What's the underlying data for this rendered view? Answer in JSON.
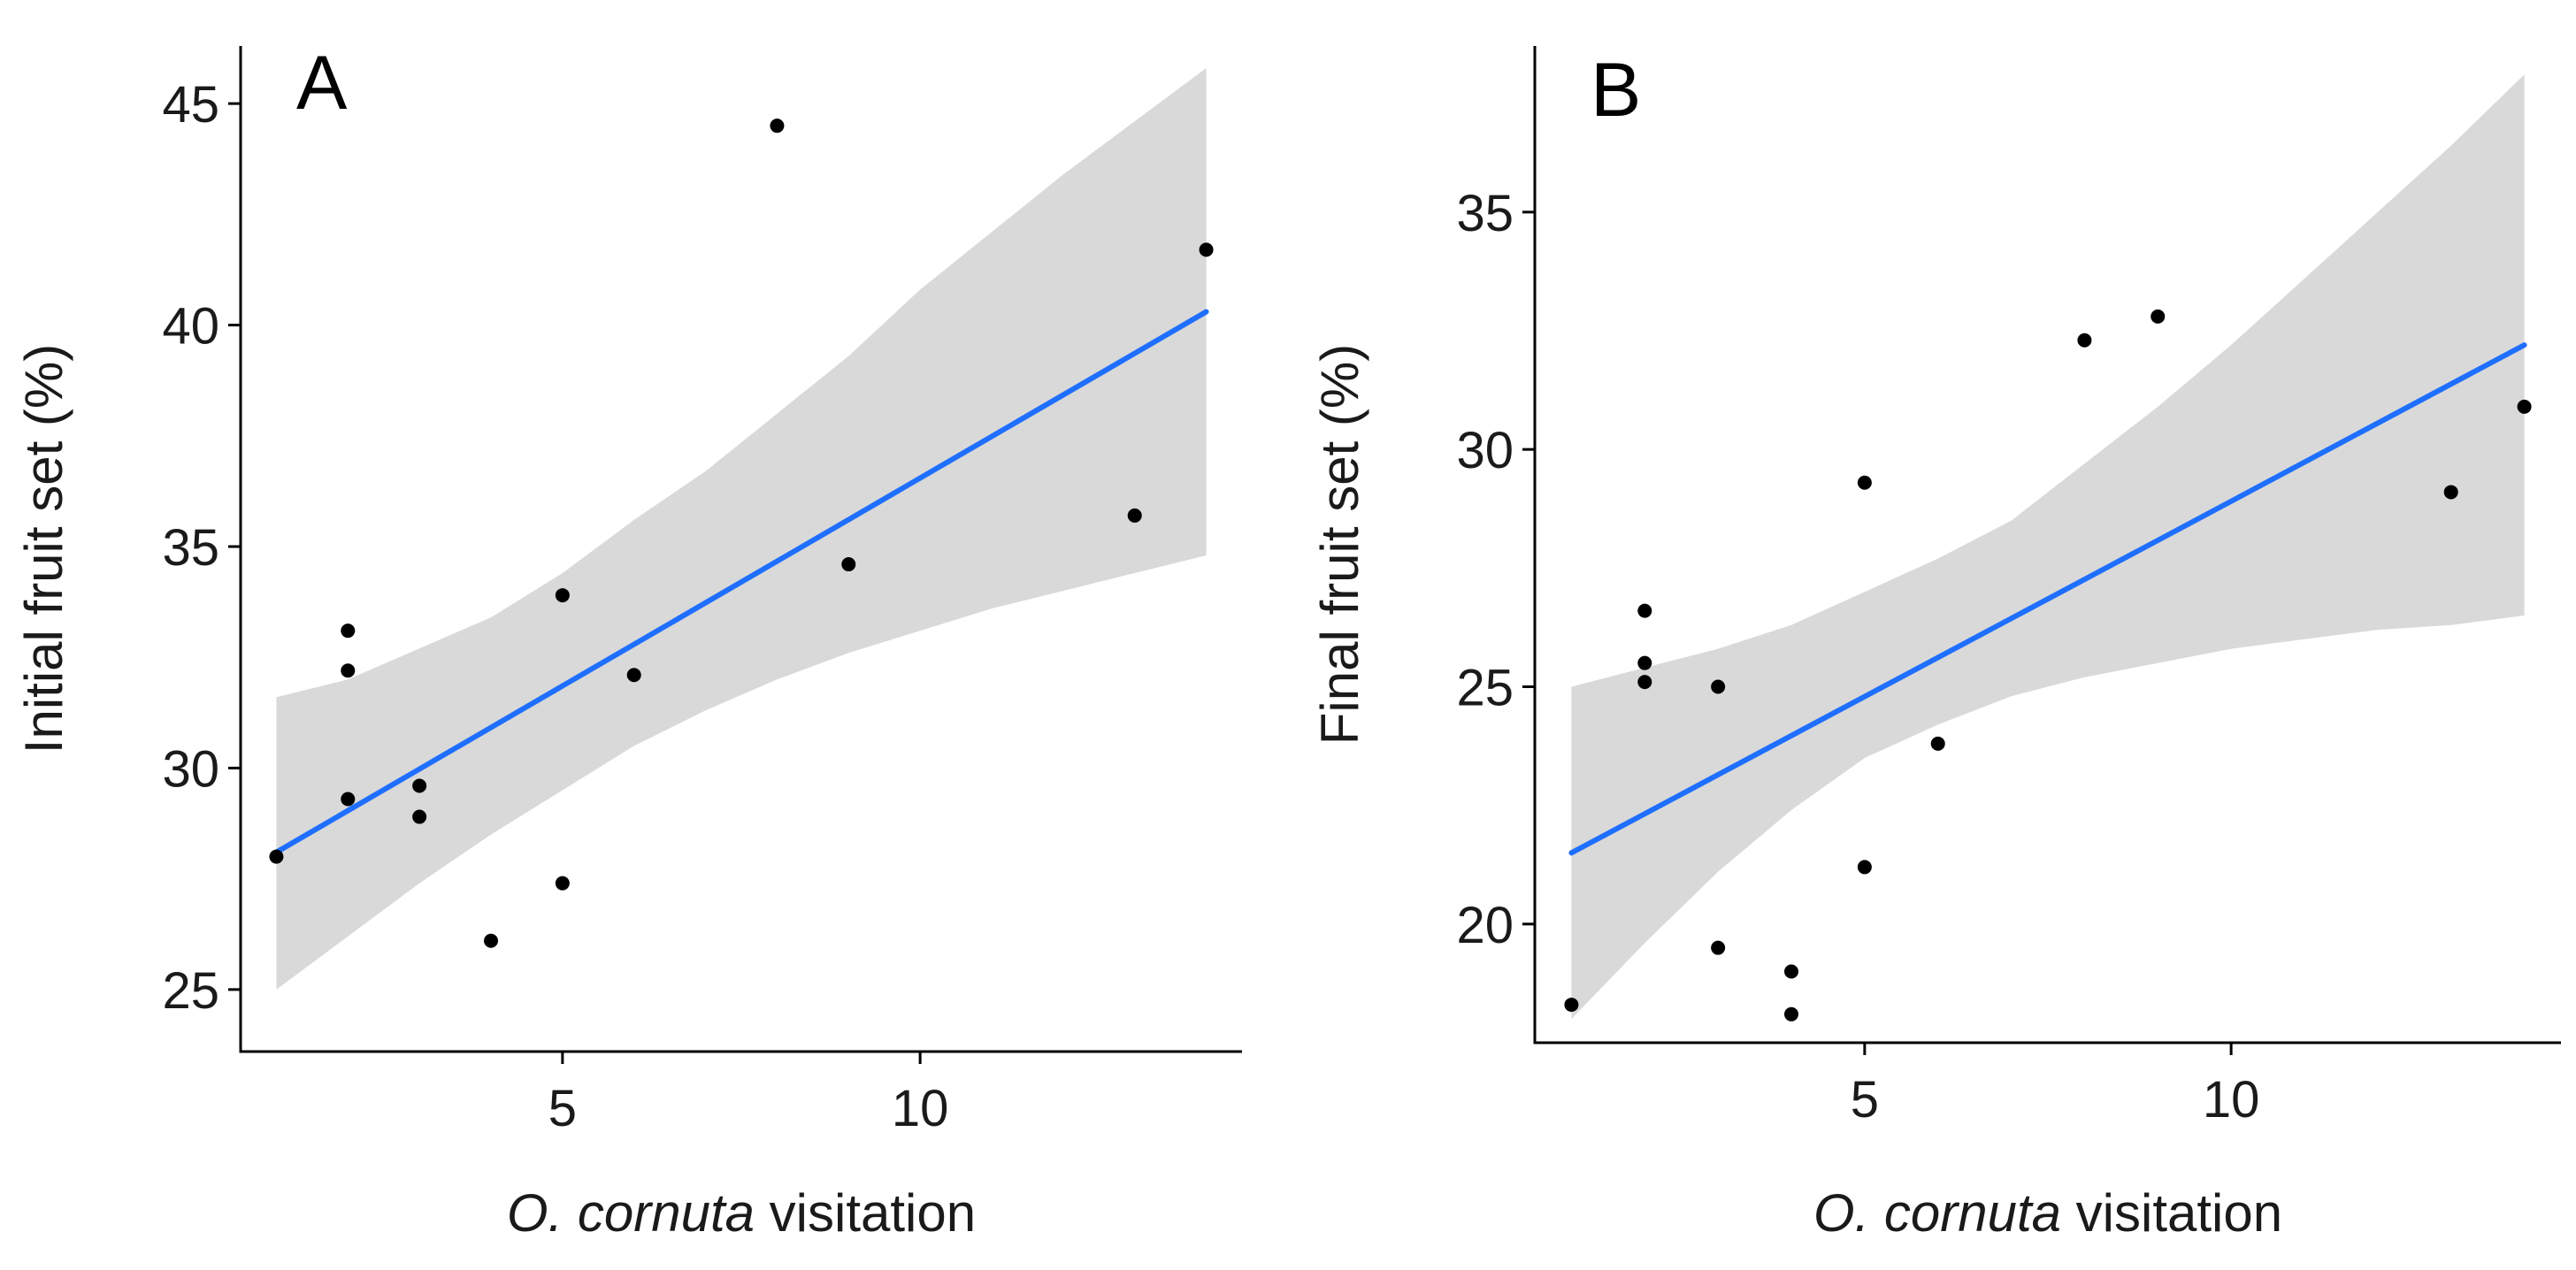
{
  "colors": {
    "band": "#d9d9d9",
    "line": "#1f6fff",
    "points": "#000000",
    "axes": "#000000"
  },
  "chart_data": [
    {
      "type": "scatter",
      "panel_label": "A",
      "title": "",
      "xlabel_italic": "O. cornuta",
      "xlabel_rest": " visitation",
      "ylabel": "Initial fruit set (%)",
      "xlim": [
        0.5,
        14.5
      ],
      "ylim": [
        23.6,
        46.3
      ],
      "xticks": [
        5,
        10
      ],
      "xtick_labels": [
        "5",
        "10"
      ],
      "yticks": [
        25,
        30,
        35,
        40,
        45
      ],
      "ytick_labels": [
        "25",
        "30",
        "35",
        "40",
        "45"
      ],
      "points": [
        {
          "x": 1,
          "y": 28.0
        },
        {
          "x": 2,
          "y": 33.1
        },
        {
          "x": 2,
          "y": 32.2
        },
        {
          "x": 2,
          "y": 29.3
        },
        {
          "x": 3,
          "y": 29.6
        },
        {
          "x": 3,
          "y": 28.9
        },
        {
          "x": 4,
          "y": 26.1
        },
        {
          "x": 5,
          "y": 33.9
        },
        {
          "x": 5,
          "y": 27.4
        },
        {
          "x": 6,
          "y": 32.1
        },
        {
          "x": 8,
          "y": 44.5
        },
        {
          "x": 9,
          "y": 34.6
        },
        {
          "x": 13,
          "y": 35.7
        },
        {
          "x": 14,
          "y": 41.7
        }
      ],
      "fit": {
        "x": [
          1,
          14
        ],
        "y": [
          28.1,
          40.3
        ]
      },
      "ci_band": {
        "x": [
          1,
          2,
          3,
          4,
          5,
          6,
          7,
          8,
          9,
          10,
          11,
          12,
          13,
          14
        ],
        "lower": [
          25.0,
          26.2,
          27.4,
          28.5,
          29.5,
          30.5,
          31.3,
          32.0,
          32.6,
          33.1,
          33.6,
          34.0,
          34.4,
          34.8
        ],
        "upper": [
          31.6,
          32.0,
          32.7,
          33.4,
          34.4,
          35.6,
          36.7,
          38.0,
          39.3,
          40.8,
          42.1,
          43.4,
          44.6,
          45.8
        ]
      }
    },
    {
      "type": "scatter",
      "panel_label": "B",
      "title": "",
      "xlabel_italic": "O. cornuta",
      "xlabel_rest": " visitation",
      "ylabel": "Final fruit set (%)",
      "xlim": [
        0.5,
        14.5
      ],
      "ylim": [
        17.5,
        38.5
      ],
      "xticks": [
        5,
        10
      ],
      "xtick_labels": [
        "5",
        "10"
      ],
      "yticks": [
        20,
        25,
        30,
        35
      ],
      "ytick_labels": [
        "20",
        "25",
        "30",
        "35"
      ],
      "points": [
        {
          "x": 1,
          "y": 18.3
        },
        {
          "x": 2,
          "y": 26.6
        },
        {
          "x": 2,
          "y": 25.5
        },
        {
          "x": 2,
          "y": 25.1
        },
        {
          "x": 3,
          "y": 25.0
        },
        {
          "x": 3,
          "y": 19.5
        },
        {
          "x": 4,
          "y": 19.0
        },
        {
          "x": 4,
          "y": 18.1
        },
        {
          "x": 5,
          "y": 29.3
        },
        {
          "x": 5,
          "y": 21.2
        },
        {
          "x": 6,
          "y": 23.8
        },
        {
          "x": 8,
          "y": 32.3
        },
        {
          "x": 9,
          "y": 32.8
        },
        {
          "x": 13,
          "y": 29.1
        },
        {
          "x": 14,
          "y": 30.9
        }
      ],
      "fit": {
        "x": [
          1,
          14
        ],
        "y": [
          21.5,
          32.2
        ]
      },
      "ci_band": {
        "x": [
          1,
          2,
          3,
          4,
          5,
          6,
          7,
          8,
          9,
          10,
          11,
          12,
          13,
          14
        ],
        "lower": [
          18.0,
          19.6,
          21.1,
          22.4,
          23.5,
          24.2,
          24.8,
          25.2,
          25.5,
          25.8,
          26.0,
          26.2,
          26.3,
          26.5
        ],
        "upper": [
          25.0,
          25.4,
          25.8,
          26.3,
          27.0,
          27.7,
          28.5,
          29.7,
          30.9,
          32.2,
          33.6,
          35.0,
          36.4,
          37.9
        ]
      }
    }
  ]
}
